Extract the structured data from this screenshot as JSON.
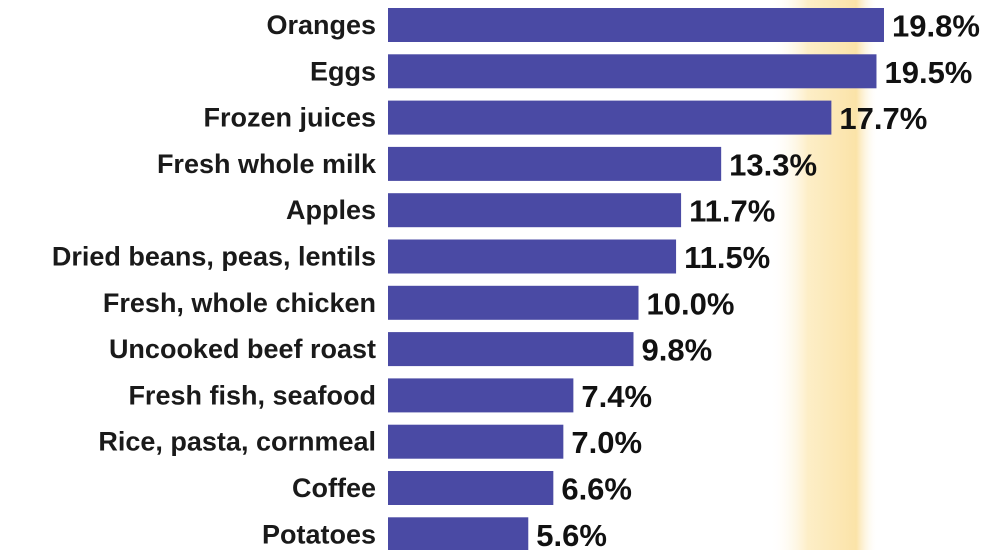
{
  "chart_data": {
    "type": "bar",
    "orientation": "horizontal",
    "categories": [
      "Oranges",
      "Eggs",
      "Frozen juices",
      "Fresh whole milk",
      "Apples",
      "Dried beans, peas, lentils",
      "Fresh, whole chicken",
      "Uncooked beef roast",
      "Fresh fish, seafood",
      "Rice, pasta, cornmeal",
      "Coffee",
      "Potatoes"
    ],
    "values": [
      19.8,
      19.5,
      17.7,
      13.3,
      11.7,
      11.5,
      10.0,
      9.8,
      7.4,
      7.0,
      6.6,
      5.6
    ],
    "value_labels": [
      "19.8%",
      "19.5%",
      "17.7%",
      "13.3%",
      "11.7%",
      "11.5%",
      "10.0%",
      "9.8%",
      "7.4%",
      "7.0%",
      "6.6%",
      "5.6%"
    ],
    "grid": false,
    "legend": "none",
    "colors": {
      "bar": "#4a4aa4",
      "label_text": "#1a1a1a",
      "value_text": "#111111",
      "background_band": "#fbe6b0"
    }
  }
}
